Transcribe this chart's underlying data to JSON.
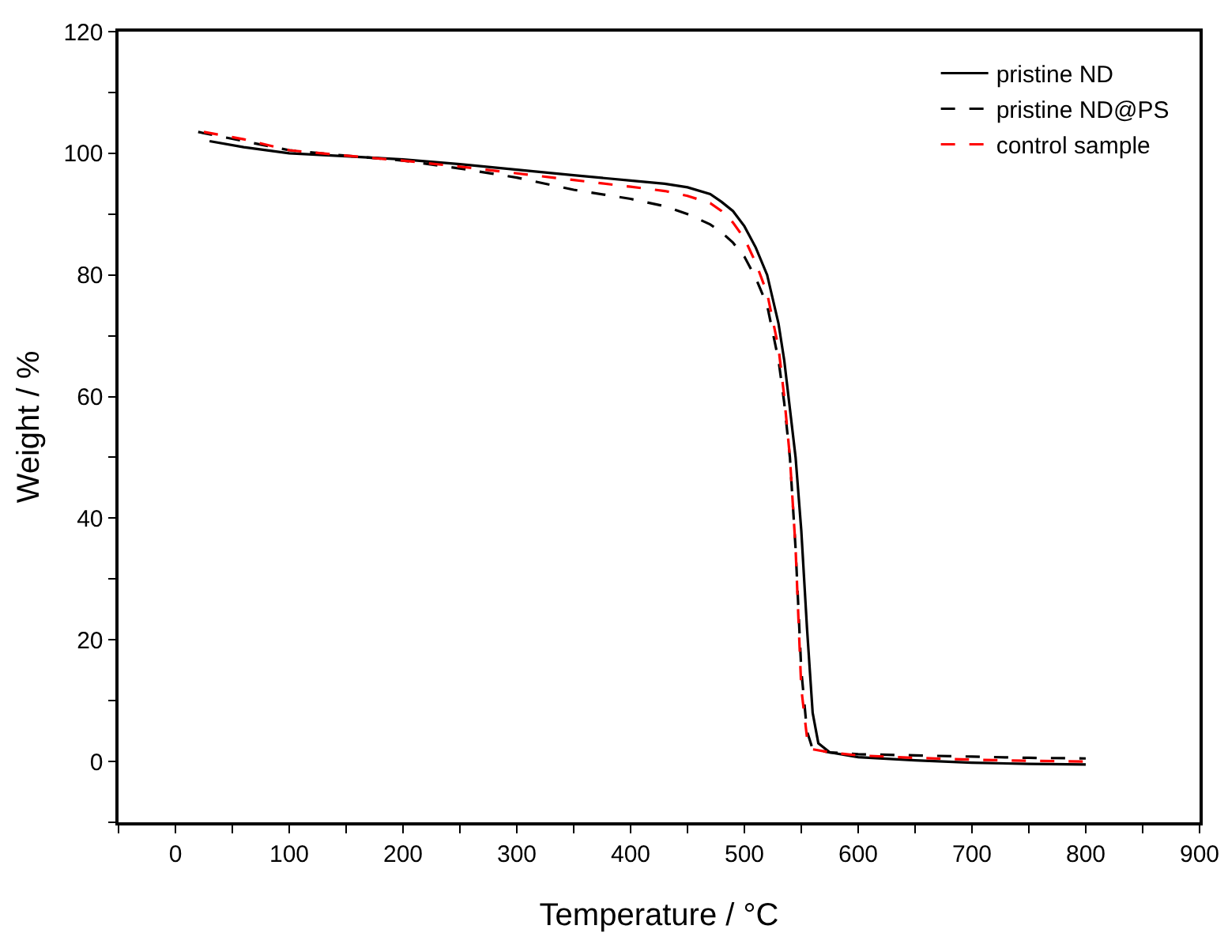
{
  "chart_data": {
    "type": "line",
    "xlabel": "Temperature / °C",
    "ylabel": "Weight / %",
    "xlim": [
      -50,
      900
    ],
    "ylim": [
      -10,
      120
    ],
    "xticks": [
      {
        "value": -50,
        "label": null
      },
      0,
      {
        "value": 50,
        "label": null
      },
      100,
      {
        "value": 150,
        "label": null
      },
      200,
      {
        "value": 250,
        "label": null
      },
      300,
      {
        "value": 350,
        "label": null
      },
      400,
      {
        "value": 450,
        "label": null
      },
      500,
      {
        "value": 550,
        "label": null
      },
      600,
      {
        "value": 650,
        "label": null
      },
      700,
      {
        "value": 750,
        "label": null
      },
      800,
      {
        "value": 850,
        "label": null
      },
      900
    ],
    "yticks": [
      {
        "value": -10,
        "label": null
      },
      0,
      {
        "value": 10,
        "label": null
      },
      20,
      {
        "value": 30,
        "label": null
      },
      40,
      {
        "value": 50,
        "label": null
      },
      60,
      {
        "value": 70,
        "label": null
      },
      80,
      {
        "value": 90,
        "label": null
      },
      100,
      {
        "value": 110,
        "label": null
      },
      120
    ],
    "grid": false,
    "legend": "top right",
    "marker": "none",
    "series": [
      {
        "name": "pristine ND",
        "color": "#000000",
        "line_style": "solid",
        "x": [
          30,
          60,
          100,
          150,
          200,
          250,
          300,
          350,
          400,
          430,
          450,
          470,
          480,
          490,
          500,
          510,
          520,
          530,
          535,
          540,
          545,
          550,
          555,
          560,
          565,
          575,
          600,
          650,
          700,
          750,
          800
        ],
        "values": [
          102,
          101,
          100,
          99.5,
          99,
          98.2,
          97.3,
          96.4,
          95.5,
          95,
          94.4,
          93.3,
          92,
          90.5,
          88,
          84.5,
          80,
          72,
          66,
          58,
          50,
          38,
          22,
          8,
          3,
          1.5,
          0.7,
          0.2,
          -0.2,
          -0.4,
          -0.5
        ]
      },
      {
        "name": "pristine ND@PS",
        "color": "#000000",
        "line_style": "dashed",
        "x": [
          20,
          60,
          100,
          150,
          200,
          250,
          300,
          350,
          400,
          430,
          450,
          470,
          480,
          490,
          500,
          510,
          520,
          530,
          535,
          540,
          545,
          550,
          555,
          560,
          575,
          600,
          650,
          700,
          750,
          800
        ],
        "values": [
          103.5,
          102,
          100.5,
          99.6,
          98.8,
          97.5,
          96,
          94,
          92.5,
          91.3,
          90,
          88.3,
          87,
          85.3,
          83,
          79.5,
          75,
          66,
          59,
          50,
          35,
          15,
          5,
          2,
          1.5,
          1.2,
          1,
          0.8,
          0.6,
          0.5
        ]
      },
      {
        "name": "control sample",
        "color": "#ff0000",
        "line_style": "dashed",
        "x": [
          25,
          60,
          100,
          150,
          200,
          250,
          300,
          350,
          400,
          430,
          450,
          470,
          480,
          490,
          500,
          510,
          520,
          530,
          535,
          540,
          545,
          550,
          555,
          560,
          575,
          600,
          650,
          700,
          750,
          800
        ],
        "values": [
          103.5,
          102.3,
          100.5,
          99.6,
          98.8,
          97.8,
          96.7,
          95.6,
          94.5,
          93.8,
          93,
          91.8,
          90.5,
          88.6,
          86,
          82,
          77,
          68,
          60,
          50,
          35,
          12,
          4,
          2,
          1.5,
          1,
          0.6,
          0.3,
          0.1,
          0
        ]
      }
    ]
  }
}
